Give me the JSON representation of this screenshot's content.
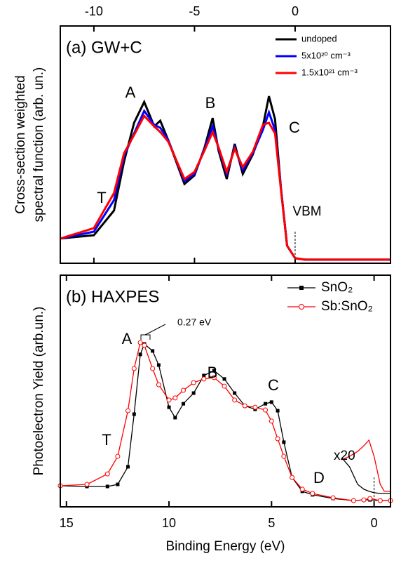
{
  "chart_data": [
    {
      "type": "line",
      "title": "(a) GW+C",
      "ylabel": [
        "Cross-section weighted",
        "spectral function (arb. un.)"
      ],
      "xlim": [
        -11.67,
        4.74
      ],
      "xticks": [
        -10,
        -5,
        0
      ],
      "ylim": [
        0,
        1
      ],
      "legend": "upper right",
      "x": [
        -11.67,
        -10,
        -9,
        -8.5,
        -8,
        -7.5,
        -7,
        -6.7,
        -6.3,
        -5.5,
        -5,
        -4.5,
        -4.1,
        -3.8,
        -3.4,
        -3,
        -2.6,
        -2.1,
        -1.6,
        -1.3,
        -1,
        -0.7,
        -0.4,
        0,
        0.5,
        4.74
      ],
      "series": [
        {
          "name": "undoped",
          "color": "#000000",
          "values": [
            0.104,
            0.118,
            0.222,
            0.429,
            0.592,
            0.68,
            0.577,
            0.601,
            0.518,
            0.334,
            0.37,
            0.488,
            0.612,
            0.473,
            0.355,
            0.503,
            0.376,
            0.459,
            0.577,
            0.704,
            0.607,
            0.311,
            0.074,
            0.021,
            0.015,
            0.015
          ]
        },
        {
          "name": "5x10²⁰ cm⁻³",
          "color": "#0000ff",
          "values": [
            0.104,
            0.133,
            0.266,
            0.453,
            0.547,
            0.642,
            0.583,
            0.571,
            0.518,
            0.346,
            0.376,
            0.482,
            0.577,
            0.482,
            0.376,
            0.488,
            0.393,
            0.464,
            0.562,
            0.636,
            0.562,
            0.311,
            0.074,
            0.021,
            0.015,
            0.015
          ]
        },
        {
          "name": "1.5x10²¹ cm⁻³",
          "color": "#ff0000",
          "values": [
            0.104,
            0.148,
            0.296,
            0.464,
            0.541,
            0.621,
            0.577,
            0.553,
            0.512,
            0.355,
            0.385,
            0.476,
            0.553,
            0.488,
            0.385,
            0.482,
            0.405,
            0.47,
            0.583,
            0.592,
            0.547,
            0.305,
            0.074,
            0.021,
            0.015,
            0.015
          ]
        }
      ],
      "annotations": [
        "A",
        "B",
        "C",
        "T",
        "VBM"
      ]
    },
    {
      "type": "line",
      "title": "(b) HAXPES",
      "xlabel": "Binding Energy (eV)",
      "ylabel": "Photoelectron Yield (arb.un.)",
      "xlim": [
        15.3,
        -0.8
      ],
      "xticks": [
        15,
        10,
        5,
        0
      ],
      "ylim": [
        0,
        1
      ],
      "legend": "upper right",
      "x": [
        15.3,
        14,
        13,
        12.5,
        12,
        11.7,
        11.4,
        11.2,
        10.8,
        10.5,
        10,
        9.7,
        9.3,
        8.8,
        8.3,
        7.8,
        7.3,
        6.8,
        6.3,
        5.8,
        5.3,
        5,
        4.7,
        4.4,
        4,
        3.5,
        3,
        2,
        1,
        0.5,
        0.2,
        -0.3,
        -0.8
      ],
      "series": [
        {
          "name": "SnO₂",
          "color": "#000000",
          "marker": "square",
          "values": [
            0.091,
            0.088,
            0.088,
            0.097,
            0.173,
            0.4,
            0.658,
            0.703,
            0.673,
            0.612,
            0.43,
            0.385,
            0.445,
            0.491,
            0.567,
            0.588,
            0.552,
            0.491,
            0.436,
            0.421,
            0.445,
            0.452,
            0.415,
            0.279,
            0.127,
            0.067,
            0.052,
            0.036,
            0.027,
            0.03,
            0.03,
            0.027,
            0.027
          ]
        },
        {
          "name": "Sb:SnO₂",
          "color": "#ff0000",
          "marker": "circle",
          "values": [
            0.091,
            0.097,
            0.142,
            0.218,
            0.415,
            0.597,
            0.709,
            0.697,
            0.597,
            0.527,
            0.461,
            0.47,
            0.503,
            0.536,
            0.552,
            0.558,
            0.521,
            0.461,
            0.436,
            0.43,
            0.418,
            0.37,
            0.294,
            0.218,
            0.127,
            0.076,
            0.058,
            0.039,
            0.027,
            0.03,
            0.036,
            0.027,
            0.027
          ]
        }
      ],
      "inset": {
        "label": "x20",
        "x": [
          1.58,
          1.2,
          0.8,
          0.5,
          0.25,
          0,
          -0.3,
          -0.5,
          -0.8
        ],
        "series": [
          {
            "color": "#000000",
            "values": [
              0.212,
              0.173,
              0.097,
              0.076,
              0.067,
              0.061,
              0.058,
              0.058,
              0.058
            ]
          },
          {
            "color": "#ff0000",
            "values": [
              0.203,
              0.218,
              0.239,
              0.264,
              0.288,
              0.218,
              0.097,
              0.067,
              0.067
            ]
          }
        ]
      },
      "annotations": [
        "A",
        "0.27 eV",
        "B",
        "C",
        "T",
        "D"
      ]
    }
  ]
}
